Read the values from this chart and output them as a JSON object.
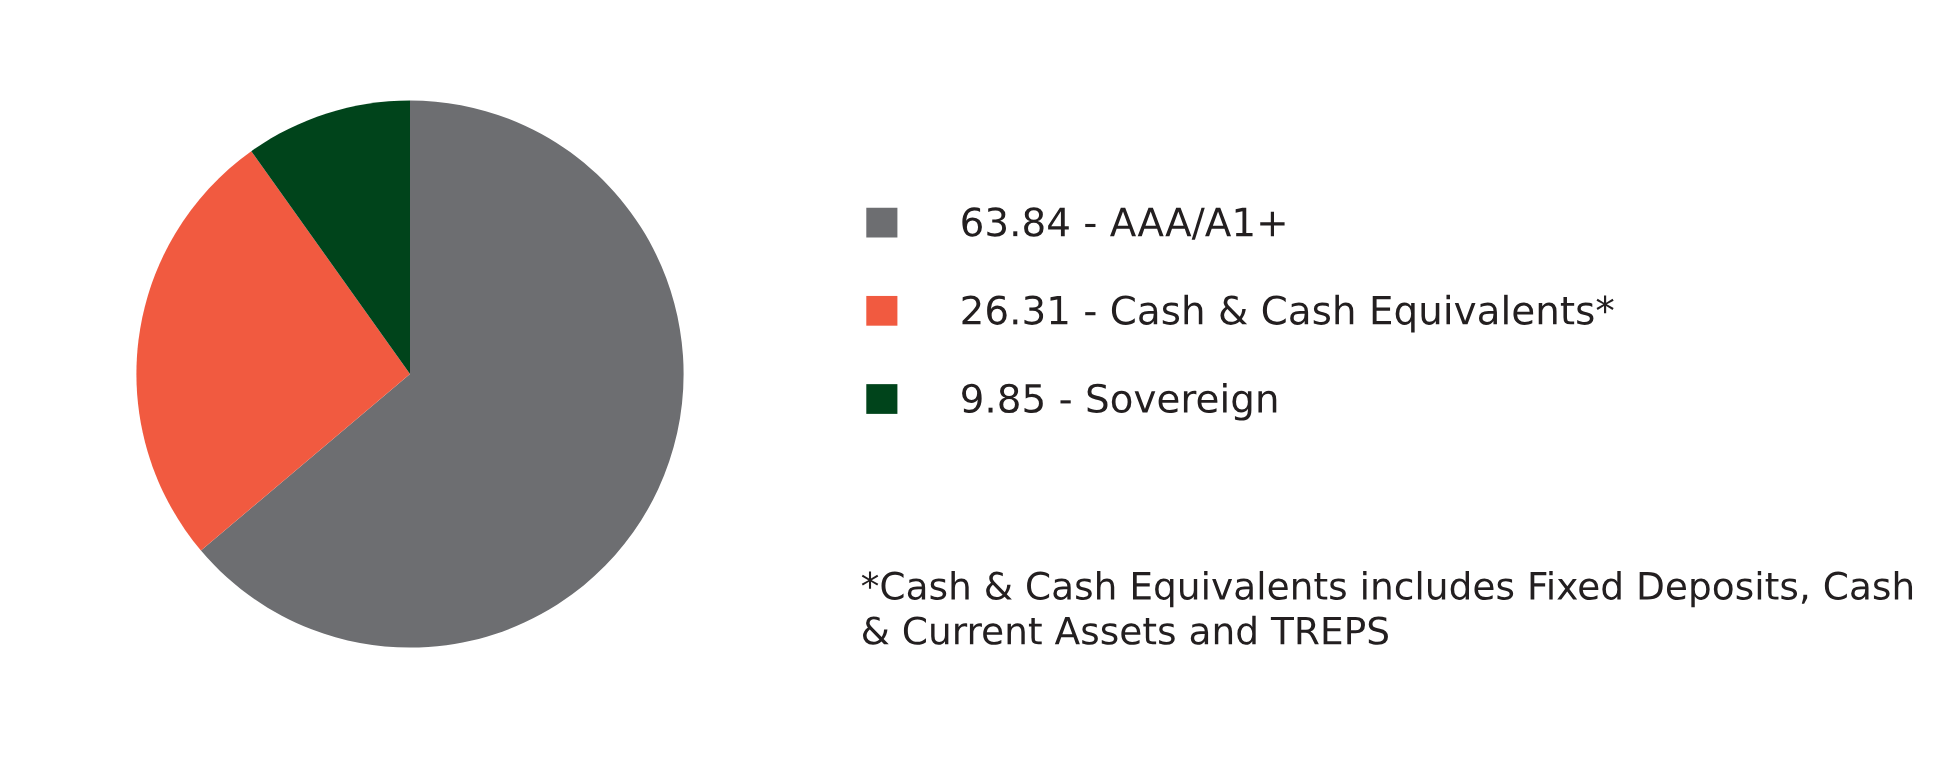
{
  "chart_data": {
    "type": "pie",
    "categories": [
      "63.84 - AAA/A1+",
      "26.31 - Cash & Cash Equivalents*",
      "9.85 - Sovereign"
    ],
    "values": [
      63.84,
      26.31,
      9.85
    ],
    "colors": [
      "#6d6e71",
      "#f15a40",
      "#00441b"
    ],
    "legend": "right",
    "annotations": [
      "*Cash & Cash Equivalents includes Fixed Deposits, Cash & Current Assets and TREPS"
    ]
  }
}
